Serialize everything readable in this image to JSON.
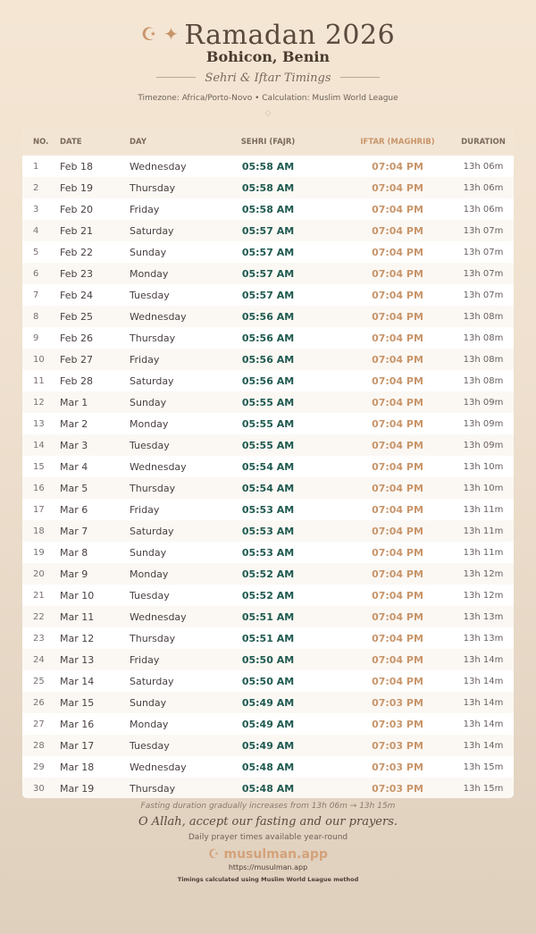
{
  "header": {
    "icon": "crescent-star-icon",
    "title": "Ramadan 2026",
    "city": "Bohicon, Benin",
    "subtitle": "Sehri & Iftar Timings",
    "meta": "Timezone: Africa/Porto-Novo • Calculation: Muslim World League"
  },
  "table": {
    "columns": [
      "NO.",
      "DATE",
      "DAY",
      "SEHRI (FAJR)",
      "IFTAR (MAGHRIB)",
      "DURATION"
    ],
    "rows": [
      [
        "1",
        "Feb 18",
        "Wednesday",
        "05:58 AM",
        "07:04 PM",
        "13h 06m"
      ],
      [
        "2",
        "Feb 19",
        "Thursday",
        "05:58 AM",
        "07:04 PM",
        "13h 06m"
      ],
      [
        "3",
        "Feb 20",
        "Friday",
        "05:58 AM",
        "07:04 PM",
        "13h 06m"
      ],
      [
        "4",
        "Feb 21",
        "Saturday",
        "05:57 AM",
        "07:04 PM",
        "13h 07m"
      ],
      [
        "5",
        "Feb 22",
        "Sunday",
        "05:57 AM",
        "07:04 PM",
        "13h 07m"
      ],
      [
        "6",
        "Feb 23",
        "Monday",
        "05:57 AM",
        "07:04 PM",
        "13h 07m"
      ],
      [
        "7",
        "Feb 24",
        "Tuesday",
        "05:57 AM",
        "07:04 PM",
        "13h 07m"
      ],
      [
        "8",
        "Feb 25",
        "Wednesday",
        "05:56 AM",
        "07:04 PM",
        "13h 08m"
      ],
      [
        "9",
        "Feb 26",
        "Thursday",
        "05:56 AM",
        "07:04 PM",
        "13h 08m"
      ],
      [
        "10",
        "Feb 27",
        "Friday",
        "05:56 AM",
        "07:04 PM",
        "13h 08m"
      ],
      [
        "11",
        "Feb 28",
        "Saturday",
        "05:56 AM",
        "07:04 PM",
        "13h 08m"
      ],
      [
        "12",
        "Mar 1",
        "Sunday",
        "05:55 AM",
        "07:04 PM",
        "13h 09m"
      ],
      [
        "13",
        "Mar 2",
        "Monday",
        "05:55 AM",
        "07:04 PM",
        "13h 09m"
      ],
      [
        "14",
        "Mar 3",
        "Tuesday",
        "05:55 AM",
        "07:04 PM",
        "13h 09m"
      ],
      [
        "15",
        "Mar 4",
        "Wednesday",
        "05:54 AM",
        "07:04 PM",
        "13h 10m"
      ],
      [
        "16",
        "Mar 5",
        "Thursday",
        "05:54 AM",
        "07:04 PM",
        "13h 10m"
      ],
      [
        "17",
        "Mar 6",
        "Friday",
        "05:53 AM",
        "07:04 PM",
        "13h 11m"
      ],
      [
        "18",
        "Mar 7",
        "Saturday",
        "05:53 AM",
        "07:04 PM",
        "13h 11m"
      ],
      [
        "19",
        "Mar 8",
        "Sunday",
        "05:53 AM",
        "07:04 PM",
        "13h 11m"
      ],
      [
        "20",
        "Mar 9",
        "Monday",
        "05:52 AM",
        "07:04 PM",
        "13h 12m"
      ],
      [
        "21",
        "Mar 10",
        "Tuesday",
        "05:52 AM",
        "07:04 PM",
        "13h 12m"
      ],
      [
        "22",
        "Mar 11",
        "Wednesday",
        "05:51 AM",
        "07:04 PM",
        "13h 13m"
      ],
      [
        "23",
        "Mar 12",
        "Thursday",
        "05:51 AM",
        "07:04 PM",
        "13h 13m"
      ],
      [
        "24",
        "Mar 13",
        "Friday",
        "05:50 AM",
        "07:04 PM",
        "13h 14m"
      ],
      [
        "25",
        "Mar 14",
        "Saturday",
        "05:50 AM",
        "07:04 PM",
        "13h 14m"
      ],
      [
        "26",
        "Mar 15",
        "Sunday",
        "05:49 AM",
        "07:03 PM",
        "13h 14m"
      ],
      [
        "27",
        "Mar 16",
        "Monday",
        "05:49 AM",
        "07:03 PM",
        "13h 14m"
      ],
      [
        "28",
        "Mar 17",
        "Tuesday",
        "05:49 AM",
        "07:03 PM",
        "13h 14m"
      ],
      [
        "29",
        "Mar 18",
        "Wednesday",
        "05:48 AM",
        "07:03 PM",
        "13h 15m"
      ],
      [
        "30",
        "Mar 19",
        "Thursday",
        "05:48 AM",
        "07:03 PM",
        "13h 15m"
      ]
    ]
  },
  "footer": {
    "note": "Fasting duration gradually increases from 13h 06m → 13h 15m",
    "prayer": "O Allah, accept our fasting and our prayers.",
    "tagline": "Daily prayer times available year-round",
    "brand": "musulman.app",
    "url": "https://musulman.app",
    "method": "Timings calculated using Muslim World League method"
  },
  "colors": {
    "sehri": "#1f5a50",
    "iftar": "#c8956a",
    "accent": "#c8956a"
  }
}
